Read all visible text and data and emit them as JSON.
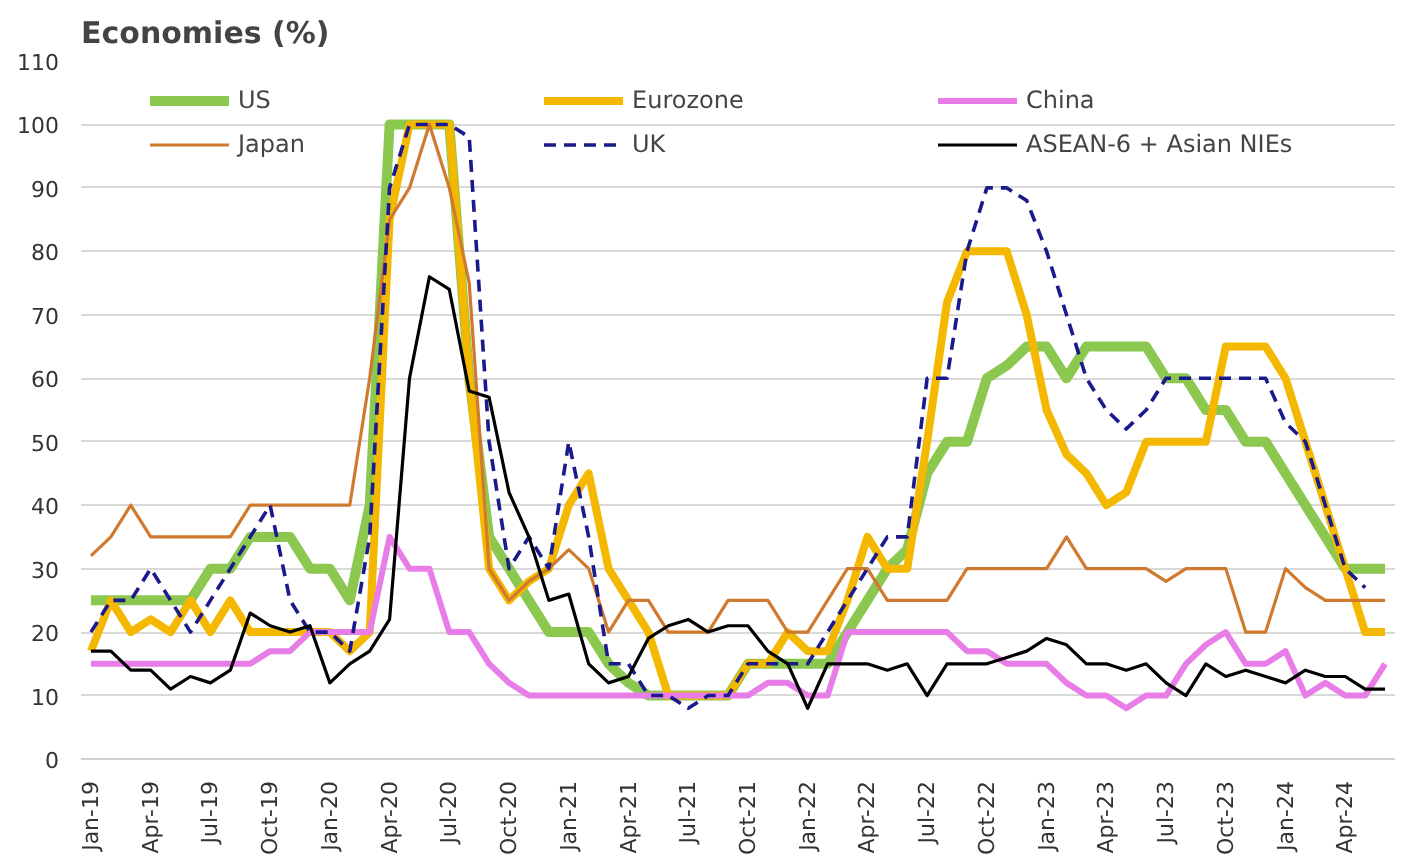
{
  "chart_data": {
    "type": "line",
    "title": "Economies (%)",
    "categories": [
      "Jan-19",
      null,
      null,
      "Apr-19",
      null,
      null,
      "Jul-19",
      null,
      null,
      "Oct-19",
      null,
      null,
      "Jan-20",
      null,
      null,
      "Apr-20",
      null,
      null,
      "Jul-20",
      null,
      null,
      "Oct-20",
      null,
      null,
      "Jan-21",
      null,
      null,
      "Apr-21",
      null,
      null,
      "Jul-21",
      null,
      null,
      "Oct-21",
      null,
      null,
      "Jan-22",
      null,
      null,
      "Apr-22",
      null,
      null,
      "Jul-22",
      null,
      null,
      "Oct-22",
      null,
      null,
      "Jan-23",
      null,
      null,
      "Apr-23",
      null,
      null,
      "Jul-23",
      null,
      null,
      "Oct-23",
      null,
      null,
      "Jan-24",
      null,
      null,
      "Apr-24",
      null,
      null
    ],
    "series": [
      {
        "name": "US",
        "color": "#8cc850",
        "line_style": "solid",
        "values": [
          25,
          25,
          25,
          25,
          25,
          25,
          30,
          30,
          35,
          35,
          35,
          30,
          30,
          25,
          40,
          100,
          100,
          100,
          100,
          60,
          35,
          30,
          25,
          20,
          20,
          20,
          15,
          12,
          10,
          10,
          10,
          10,
          10,
          15,
          15,
          15,
          15,
          15,
          20,
          25,
          30,
          33,
          45,
          50,
          50,
          60,
          62,
          65,
          65,
          60,
          65,
          65,
          65,
          65,
          60,
          60,
          55,
          55,
          50,
          50,
          45,
          40,
          35,
          30,
          30,
          30
        ]
      },
      {
        "name": "Eurozone",
        "color": "#f5b800",
        "line_style": "solid",
        "values": [
          17,
          25,
          20,
          22,
          20,
          25,
          20,
          25,
          20,
          20,
          20,
          20,
          20,
          17,
          20,
          85,
          100,
          100,
          100,
          60,
          30,
          25,
          28,
          30,
          40,
          45,
          30,
          25,
          20,
          10,
          10,
          10,
          10,
          15,
          15,
          20,
          17,
          17,
          25,
          35,
          30,
          30,
          50,
          72,
          80,
          80,
          80,
          70,
          55,
          48,
          45,
          40,
          42,
          50,
          50,
          50,
          50,
          65,
          65,
          65,
          60,
          50,
          40,
          30,
          20,
          20
        ]
      },
      {
        "name": "China",
        "color": "#e87de8",
        "line_style": "solid",
        "values": [
          15,
          15,
          15,
          15,
          15,
          15,
          15,
          15,
          15,
          17,
          17,
          20,
          20,
          20,
          20,
          35,
          30,
          30,
          20,
          20,
          15,
          12,
          10,
          10,
          10,
          10,
          10,
          10,
          10,
          10,
          10,
          10,
          10,
          10,
          12,
          12,
          10,
          10,
          20,
          20,
          20,
          20,
          20,
          20,
          17,
          17,
          15,
          15,
          15,
          12,
          10,
          10,
          8,
          10,
          10,
          15,
          18,
          20,
          15,
          15,
          17,
          10,
          12,
          10,
          10,
          15
        ]
      },
      {
        "name": "Japan",
        "color": "#d07a30",
        "line_style": "solid",
        "values": [
          32,
          35,
          40,
          35,
          35,
          35,
          35,
          35,
          40,
          40,
          40,
          40,
          40,
          40,
          60,
          85,
          90,
          100,
          90,
          75,
          30,
          25,
          28,
          30,
          33,
          30,
          20,
          25,
          25,
          20,
          20,
          20,
          25,
          25,
          25,
          20,
          20,
          25,
          30,
          30,
          25,
          25,
          25,
          25,
          30,
          30,
          30,
          30,
          30,
          35,
          30,
          30,
          30,
          30,
          28,
          30,
          30,
          30,
          20,
          20,
          30,
          27,
          25,
          25,
          25,
          25
        ]
      },
      {
        "name": "UK",
        "color": "#1a1a8c",
        "line_style": "dashed",
        "values": [
          20,
          25,
          25,
          30,
          25,
          20,
          25,
          30,
          35,
          40,
          25,
          20,
          20,
          17,
          35,
          90,
          100,
          100,
          100,
          98,
          50,
          30,
          35,
          30,
          50,
          35,
          15,
          15,
          10,
          10,
          8,
          10,
          10,
          15,
          15,
          15,
          15,
          20,
          25,
          30,
          35,
          35,
          60,
          60,
          80,
          90,
          90,
          88,
          80,
          70,
          60,
          55,
          52,
          55,
          60,
          60,
          60,
          60,
          60,
          60,
          53,
          50,
          40,
          30,
          27,
          null
        ]
      },
      {
        "name": "ASEAN-6 + Asian NIEs",
        "color": "#000000",
        "line_style": "solid",
        "values": [
          17,
          17,
          14,
          14,
          11,
          13,
          12,
          14,
          23,
          21,
          20,
          21,
          12,
          15,
          17,
          22,
          60,
          76,
          74,
          58,
          57,
          42,
          35,
          25,
          26,
          15,
          12,
          13,
          19,
          21,
          22,
          20,
          21,
          21,
          17,
          15,
          8,
          15,
          15,
          15,
          14,
          15,
          10,
          15,
          15,
          15,
          16,
          17,
          19,
          18,
          15,
          15,
          14,
          15,
          12,
          10,
          15,
          13,
          14,
          13,
          12,
          14,
          13,
          13,
          11,
          11
        ]
      }
    ],
    "ylim": [
      0,
      110
    ],
    "yticks": [
      0,
      10,
      20,
      30,
      40,
      50,
      60,
      70,
      80,
      90,
      100,
      110
    ],
    "grid": "y",
    "legend": "top"
  }
}
